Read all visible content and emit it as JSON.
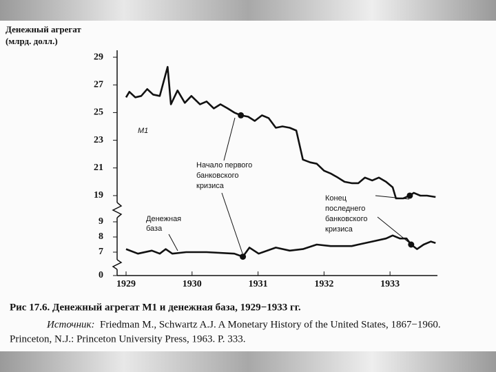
{
  "chart_data": [
    {
      "type": "line",
      "ylabel": [
        "Денежный агрегат",
        "(млрд. долл.)"
      ],
      "xlim": [
        1929,
        1933.75
      ],
      "ylim": [
        18.5,
        29.5
      ],
      "yticks": [
        19,
        21,
        23,
        25,
        27,
        29
      ],
      "x": [
        1929.0,
        1929.05,
        1929.14,
        1929.23,
        1929.32,
        1929.41,
        1929.51,
        1929.63,
        1929.68,
        1929.78,
        1929.89,
        1929.99,
        1930.12,
        1930.22,
        1930.33,
        1930.43,
        1930.54,
        1930.64,
        1930.74,
        1930.85,
        1930.95,
        1931.06,
        1931.16,
        1931.27,
        1931.37,
        1931.48,
        1931.58,
        1931.68,
        1931.79,
        1931.89,
        1932.0,
        1932.1,
        1932.21,
        1932.31,
        1932.42,
        1932.52,
        1932.62,
        1932.73,
        1932.83,
        1932.94,
        1933.04,
        1933.09,
        1933.2,
        1933.3,
        1933.36,
        1933.46,
        1933.56,
        1933.69
      ],
      "series": [
        {
          "name": "M1",
          "color": "#111111",
          "values": [
            26.1,
            26.5,
            26.1,
            26.2,
            26.7,
            26.3,
            26.2,
            28.3,
            25.6,
            26.6,
            25.7,
            26.2,
            25.6,
            25.8,
            25.3,
            25.6,
            25.3,
            25.0,
            24.8,
            24.7,
            24.4,
            24.8,
            24.6,
            23.9,
            24.0,
            23.9,
            23.7,
            21.6,
            21.4,
            21.3,
            20.8,
            20.6,
            20.3,
            20.0,
            19.9,
            19.9,
            20.3,
            20.1,
            20.3,
            20.0,
            19.6,
            18.8,
            18.8,
            19.0,
            19.2,
            19.0,
            19.0,
            18.9
          ]
        }
      ],
      "annotations": [
        [
          "Начало первого",
          "банковского",
          "кризиса"
        ],
        [
          "Конец",
          "последнего",
          "банковского",
          "кризиса"
        ]
      ]
    },
    {
      "type": "line",
      "xlim": [
        1929,
        1933.75
      ],
      "xticks": [
        1929,
        1930,
        1931,
        1932,
        1933
      ],
      "ylim": [
        0,
        9.5
      ],
      "ybreak": [
        0.5,
        6.5
      ],
      "yticks": [
        0,
        7,
        8,
        9
      ],
      "x": [
        1929.0,
        1929.18,
        1929.39,
        1929.51,
        1929.6,
        1929.7,
        1929.91,
        1930.22,
        1930.64,
        1930.77,
        1930.87,
        1931.01,
        1931.27,
        1931.48,
        1931.68,
        1931.89,
        1932.1,
        1932.42,
        1932.52,
        1932.73,
        1932.94,
        1933.04,
        1933.15,
        1933.25,
        1933.32,
        1933.41,
        1933.51,
        1933.62,
        1933.69
      ],
      "series": [
        {
          "name": "Денежная база",
          "color": "#111111",
          "values": [
            7.2,
            6.9,
            7.1,
            6.9,
            7.2,
            6.9,
            7.0,
            7.0,
            6.9,
            6.7,
            7.3,
            6.9,
            7.3,
            7.1,
            7.2,
            7.5,
            7.4,
            7.4,
            7.5,
            7.7,
            7.9,
            8.1,
            7.9,
            7.9,
            7.5,
            7.2,
            7.5,
            7.7,
            7.6
          ]
        }
      ]
    }
  ],
  "caption": "Рис 17.6. Денежный агрегат M1 и денежная база, 1929−1933 гг.",
  "source_label": "Источник:",
  "source": [
    "Friedman M., Schwartz A.J. A Monetary History of the United States, 1867−1960.",
    "Princeton, N.J.: Princeton University Press, 1963. P. 333."
  ]
}
